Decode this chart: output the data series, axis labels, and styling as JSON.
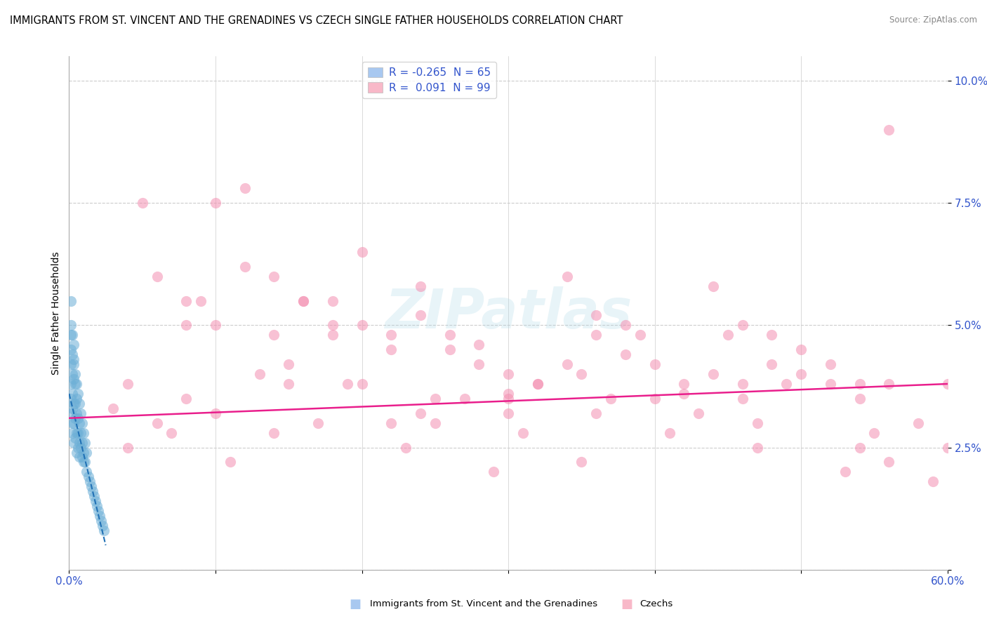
{
  "title": "IMMIGRANTS FROM ST. VINCENT AND THE GRENADINES VS CZECH SINGLE FATHER HOUSEHOLDS CORRELATION CHART",
  "source": "Source: ZipAtlas.com",
  "ylabel": "Single Father Households",
  "yticks": [
    0.0,
    0.025,
    0.05,
    0.075,
    0.1
  ],
  "ytick_labels": [
    "",
    "2.5%",
    "5.0%",
    "7.5%",
    "10.0%"
  ],
  "xlim": [
    0.0,
    0.6
  ],
  "ylim": [
    0.0,
    0.105
  ],
  "legend_entries": [
    {
      "label_r": "R = ",
      "label_rv": "-0.265",
      "label_n": "  N = ",
      "label_nv": "65",
      "color": "#a8c8f0"
    },
    {
      "label_r": "R = ",
      "label_rv": " 0.091",
      "label_n": "  N = ",
      "label_nv": "99",
      "color": "#f8b8c8"
    }
  ],
  "watermark": "ZIPatlas",
  "blue_scatter_x": [
    0.001,
    0.001,
    0.001,
    0.001,
    0.002,
    0.002,
    0.002,
    0.001,
    0.001,
    0.002,
    0.002,
    0.003,
    0.003,
    0.003,
    0.003,
    0.003,
    0.004,
    0.004,
    0.004,
    0.004,
    0.005,
    0.005,
    0.005,
    0.005,
    0.006,
    0.006,
    0.006,
    0.007,
    0.007,
    0.007,
    0.008,
    0.008,
    0.009,
    0.009,
    0.01,
    0.01,
    0.011,
    0.012,
    0.013,
    0.014,
    0.015,
    0.016,
    0.017,
    0.018,
    0.019,
    0.02,
    0.021,
    0.022,
    0.023,
    0.024,
    0.001,
    0.001,
    0.002,
    0.002,
    0.003,
    0.003,
    0.004,
    0.005,
    0.006,
    0.007,
    0.008,
    0.009,
    0.01,
    0.011,
    0.012
  ],
  "blue_scatter_y": [
    0.045,
    0.038,
    0.042,
    0.035,
    0.04,
    0.036,
    0.033,
    0.048,
    0.032,
    0.03,
    0.028,
    0.043,
    0.039,
    0.034,
    0.03,
    0.026,
    0.038,
    0.034,
    0.031,
    0.027,
    0.035,
    0.032,
    0.028,
    0.024,
    0.031,
    0.028,
    0.025,
    0.03,
    0.026,
    0.023,
    0.028,
    0.025,
    0.026,
    0.023,
    0.024,
    0.022,
    0.022,
    0.02,
    0.019,
    0.018,
    0.017,
    0.016,
    0.015,
    0.014,
    0.013,
    0.012,
    0.011,
    0.01,
    0.009,
    0.008,
    0.05,
    0.055,
    0.048,
    0.044,
    0.046,
    0.042,
    0.04,
    0.038,
    0.036,
    0.034,
    0.032,
    0.03,
    0.028,
    0.026,
    0.024
  ],
  "pink_scatter_x": [
    0.04,
    0.08,
    0.05,
    0.1,
    0.06,
    0.12,
    0.08,
    0.14,
    0.1,
    0.16,
    0.12,
    0.18,
    0.14,
    0.2,
    0.16,
    0.22,
    0.18,
    0.24,
    0.2,
    0.26,
    0.22,
    0.28,
    0.24,
    0.3,
    0.26,
    0.32,
    0.28,
    0.34,
    0.3,
    0.36,
    0.32,
    0.38,
    0.34,
    0.4,
    0.36,
    0.42,
    0.38,
    0.44,
    0.4,
    0.46,
    0.42,
    0.48,
    0.44,
    0.5,
    0.46,
    0.52,
    0.48,
    0.54,
    0.5,
    0.56,
    0.52,
    0.58,
    0.54,
    0.6,
    0.06,
    0.1,
    0.15,
    0.2,
    0.25,
    0.3,
    0.07,
    0.13,
    0.19,
    0.25,
    0.31,
    0.37,
    0.43,
    0.49,
    0.55,
    0.11,
    0.17,
    0.23,
    0.29,
    0.35,
    0.41,
    0.47,
    0.53,
    0.59,
    0.09,
    0.18,
    0.27,
    0.36,
    0.45,
    0.54,
    0.03,
    0.08,
    0.15,
    0.22,
    0.3,
    0.39,
    0.47,
    0.56,
    0.04,
    0.14,
    0.24,
    0.35,
    0.46,
    0.56,
    0.6
  ],
  "pink_scatter_y": [
    0.038,
    0.05,
    0.075,
    0.075,
    0.06,
    0.078,
    0.055,
    0.06,
    0.05,
    0.055,
    0.062,
    0.05,
    0.048,
    0.065,
    0.055,
    0.045,
    0.055,
    0.058,
    0.05,
    0.045,
    0.048,
    0.042,
    0.052,
    0.04,
    0.048,
    0.038,
    0.046,
    0.06,
    0.036,
    0.052,
    0.038,
    0.05,
    0.042,
    0.035,
    0.048,
    0.038,
    0.044,
    0.058,
    0.042,
    0.038,
    0.036,
    0.048,
    0.04,
    0.045,
    0.05,
    0.038,
    0.042,
    0.035,
    0.04,
    0.038,
    0.042,
    0.03,
    0.038,
    0.025,
    0.03,
    0.032,
    0.042,
    0.038,
    0.03,
    0.032,
    0.028,
    0.04,
    0.038,
    0.035,
    0.028,
    0.035,
    0.032,
    0.038,
    0.028,
    0.022,
    0.03,
    0.025,
    0.02,
    0.022,
    0.028,
    0.025,
    0.02,
    0.018,
    0.055,
    0.048,
    0.035,
    0.032,
    0.048,
    0.025,
    0.033,
    0.035,
    0.038,
    0.03,
    0.035,
    0.048,
    0.03,
    0.09,
    0.025,
    0.028,
    0.032,
    0.04,
    0.035,
    0.022,
    0.038
  ],
  "blue_line_x": [
    0.0,
    0.025
  ],
  "blue_line_y": [
    0.036,
    0.005
  ],
  "pink_line_x": [
    0.0,
    0.6
  ],
  "pink_line_y": [
    0.031,
    0.038
  ],
  "blue_color": "#6baed6",
  "pink_color": "#f48fb1",
  "blue_line_color": "#2171b5",
  "pink_line_color": "#e91e8c",
  "marker_size": 120,
  "alpha": 0.55,
  "background_color": "#ffffff",
  "grid_color": "#cccccc"
}
